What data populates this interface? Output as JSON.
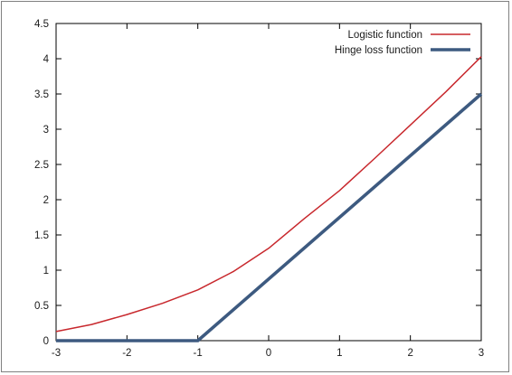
{
  "chart_data": {
    "type": "line",
    "title": "",
    "xlabel": "",
    "ylabel": "",
    "xlim": [
      -3,
      3
    ],
    "ylim": [
      0,
      4.5
    ],
    "xticks": [
      -3,
      -2,
      -1,
      0,
      1,
      2,
      3
    ],
    "yticks": [
      0,
      0.5,
      1,
      1.5,
      2,
      2.5,
      3,
      3.5,
      4,
      4.5
    ],
    "xtick_labels": [
      "-3",
      "-2",
      "-1",
      "0",
      "1",
      "2",
      "3"
    ],
    "ytick_labels": [
      "0",
      "0.5",
      "1",
      "1.5",
      "2",
      "2.5",
      "3",
      "3.5",
      "4",
      "4.5"
    ],
    "grid": false,
    "legend_position": "top-right",
    "series": [
      {
        "name": "Logistic function",
        "color": "#c8282d",
        "line_weight": "thin",
        "x": [
          -3,
          -2.5,
          -2,
          -1.5,
          -1,
          -0.5,
          0,
          0.5,
          1,
          1.5,
          2,
          2.5,
          3
        ],
        "y": [
          0.13,
          0.23,
          0.37,
          0.53,
          0.72,
          0.98,
          1.31,
          1.73,
          2.13,
          2.59,
          3.06,
          3.53,
          4.03
        ]
      },
      {
        "name": "Hinge loss function",
        "color": "#3d5a80",
        "line_weight": "thick",
        "x": [
          -3,
          -1,
          3
        ],
        "y": [
          0,
          0,
          3.5
        ]
      }
    ]
  }
}
